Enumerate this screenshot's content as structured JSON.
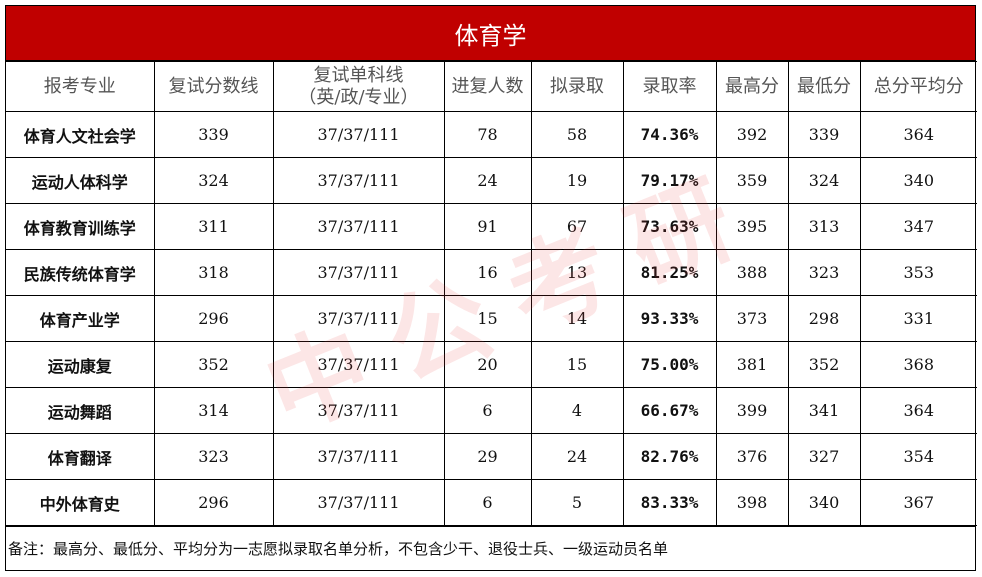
{
  "title": "体育学",
  "table": {
    "header": [
      "报考专业",
      "复试分数线",
      "复试单科线\n（英/政/专业）",
      "进复人数",
      "拟录取",
      "录取率",
      "最高分",
      "最低分",
      "总分平均分"
    ],
    "rows": [
      [
        "体育人文社会学",
        "339",
        "37/37/111",
        "78",
        "58",
        "74.36%",
        "392",
        "339",
        "364"
      ],
      [
        "运动人体科学",
        "324",
        "37/37/111",
        "24",
        "19",
        "79.17%",
        "359",
        "324",
        "340"
      ],
      [
        "体育教育训练学",
        "311",
        "37/37/111",
        "91",
        "67",
        "73.63%",
        "395",
        "313",
        "347"
      ],
      [
        "民族传统体育学",
        "318",
        "37/37/111",
        "16",
        "13",
        "81.25%",
        "388",
        "323",
        "353"
      ],
      [
        "体育产业学",
        "296",
        "37/37/111",
        "15",
        "14",
        "93.33%",
        "373",
        "298",
        "331"
      ],
      [
        "运动康复",
        "352",
        "37/37/111",
        "20",
        "15",
        "75.00%",
        "381",
        "352",
        "368"
      ],
      [
        "运动舞蹈",
        "314",
        "37/37/111",
        "6",
        "4",
        "66.67%",
        "399",
        "341",
        "364"
      ],
      [
        "体育翻译",
        "323",
        "37/37/111",
        "29",
        "24",
        "82.76%",
        "376",
        "327",
        "354"
      ],
      [
        "中外体育史",
        "296",
        "37/37/111",
        "6",
        "5",
        "83.33%",
        "398",
        "340",
        "367"
      ]
    ]
  },
  "note": "备注：最高分、最低分、平均分为一志愿拟录取名单分析，不包含少干、退役士兵、一级运动员名单",
  "watermark": "中公考研"
}
